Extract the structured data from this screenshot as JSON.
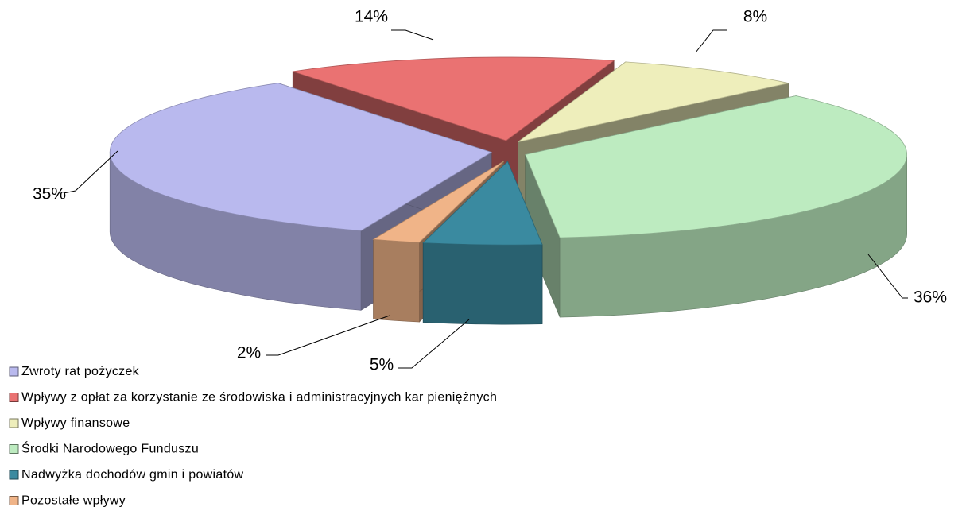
{
  "chart_data": {
    "type": "pie",
    "categories": [
      "Zwroty rat pożyczek",
      "Wpływy z opłat za korzystanie ze środowiska i administracyjnych kar pieniężnych",
      "Wpływy finansowe",
      "Środki Narodowego Funduszu",
      "Nadwyżka dochodów gmin i powiatów",
      "Pozostałe wpływy"
    ],
    "values": [
      35,
      14,
      8,
      36,
      5,
      2
    ],
    "value_labels": [
      "35%",
      "14%",
      "8%",
      "36%",
      "5%",
      "2%"
    ],
    "colors": [
      "#b9b9ee",
      "#ea7272",
      "#eeeebb",
      "#bdebc0",
      "#3a8aa0",
      "#f0b488"
    ],
    "legend": "bottom-left"
  }
}
